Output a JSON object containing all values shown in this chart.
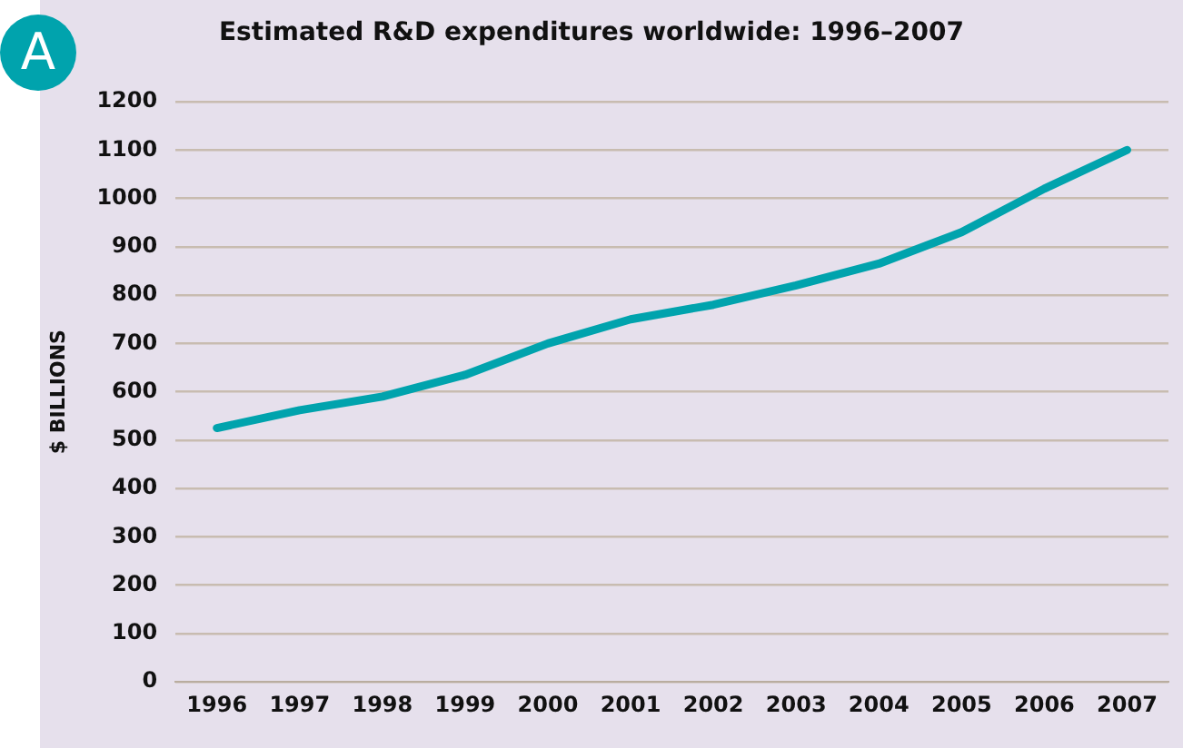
{
  "chart_data": {
    "type": "line",
    "title": "Estimated R&D expenditures worldwide: 1996–2007",
    "ylabel": "$ BILLIONS",
    "annotations": [
      "A"
    ],
    "categories": [
      "1996",
      "1997",
      "1998",
      "1999",
      "2000",
      "2001",
      "2002",
      "2003",
      "2004",
      "2005",
      "2006",
      "2007"
    ],
    "series": [
      {
        "color": "#00a3ad",
        "values": [
          525,
          562,
          590,
          635,
          700,
          750,
          780,
          820,
          865,
          930,
          1020,
          1100
        ]
      }
    ],
    "ylim": [
      0,
      1200
    ],
    "yticks": [
      0,
      100,
      200,
      300,
      400,
      500,
      600,
      700,
      800,
      900,
      1000,
      1100,
      1200
    ],
    "grid": "y",
    "legend": false,
    "marker": "none",
    "line_style": "solid"
  }
}
